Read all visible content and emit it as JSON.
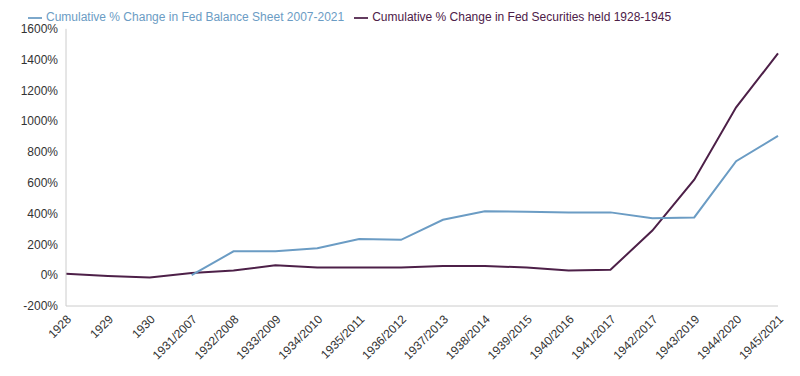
{
  "chart_data": {
    "type": "line",
    "categories": [
      "1928",
      "1929",
      "1930",
      "1931/2007",
      "1932/2008",
      "1933/2009",
      "1934/2010",
      "1935/2011",
      "1936/2012",
      "1937/2013",
      "1938/2014",
      "1939/2015",
      "1940/2016",
      "1941/2017",
      "1942/2017",
      "1943/2019",
      "1944/2020",
      "1945/2021"
    ],
    "series": [
      {
        "name": "Cumulative  % Change in Fed Securities held 1928-1945",
        "color": "#4d2048",
        "values": [
          10,
          -5,
          -15,
          15,
          30,
          65,
          50,
          50,
          50,
          60,
          60,
          50,
          30,
          35,
          290,
          620,
          1090,
          1440
        ]
      },
      {
        "name": "Cumulative  % Change in Fed Balance Sheet 2007-2021",
        "color": "#6b9cc4",
        "values": [
          null,
          null,
          null,
          0,
          155,
          155,
          175,
          235,
          230,
          360,
          415,
          412,
          408,
          408,
          370,
          375,
          740,
          905
        ]
      }
    ],
    "ylim": [
      -200,
      1600
    ],
    "yticks": [
      {
        "value": -200,
        "label": "-200%"
      },
      {
        "value": 0,
        "label": "0%"
      },
      {
        "value": 200,
        "label": "200%"
      },
      {
        "value": 400,
        "label": "400%"
      },
      {
        "value": 600,
        "label": "600%"
      },
      {
        "value": 800,
        "label": "800%"
      },
      {
        "value": 1000,
        "label": "1000%"
      },
      {
        "value": 1200,
        "label": "1200%"
      },
      {
        "value": 1400,
        "label": "1400%"
      },
      {
        "value": 1600,
        "label": "1600%"
      }
    ],
    "grid": false,
    "legend": "top-left"
  }
}
